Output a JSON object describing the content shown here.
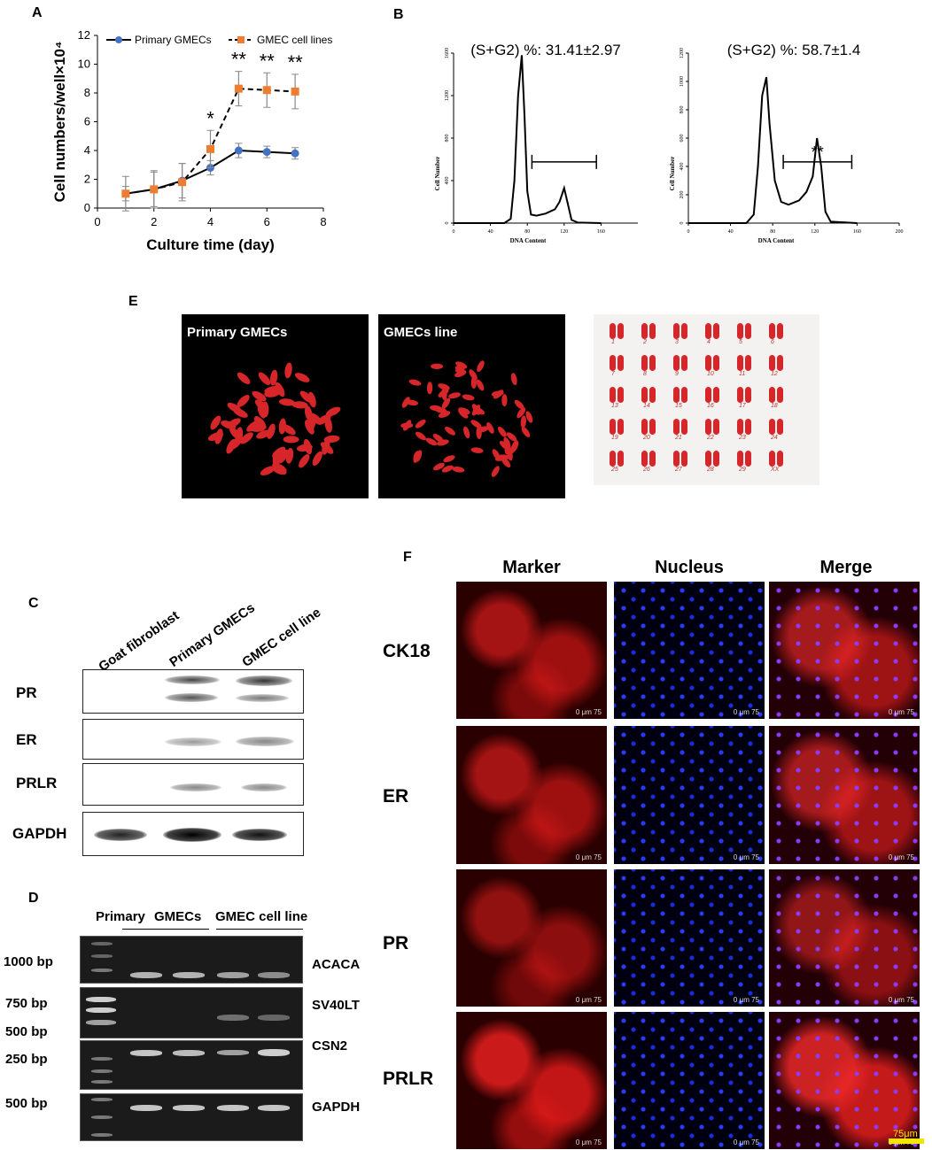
{
  "panels": {
    "A": "A",
    "B": "B",
    "C": "C",
    "D": "D",
    "E": "E",
    "F": "F"
  },
  "chart_data": [
    {
      "type": "line",
      "title": "",
      "xlabel": "Culture time (day)",
      "ylabel": "Cell numbers/well×10⁴",
      "xlim": [
        0,
        8
      ],
      "ylim": [
        0,
        12
      ],
      "xticks": [
        0,
        2,
        4,
        6,
        8
      ],
      "yticks": [
        0,
        2,
        4,
        6,
        8,
        10,
        12
      ],
      "x": [
        1,
        2,
        3,
        4,
        5,
        6,
        7
      ],
      "series": [
        {
          "name": "Primary GMECs",
          "color": "#4472c4",
          "values": [
            1.0,
            1.3,
            1.9,
            2.8,
            4.0,
            3.9,
            3.8
          ],
          "errors": [
            1.2,
            1.2,
            1.2,
            0.5,
            0.5,
            0.4,
            0.4
          ]
        },
        {
          "name": "GMEC cell lines",
          "color": "#ed7d31",
          "values": [
            1.0,
            1.3,
            1.8,
            4.1,
            8.3,
            8.2,
            8.1
          ],
          "errors": [
            0.5,
            1.3,
            1.3,
            1.3,
            1.2,
            1.2,
            1.2
          ]
        }
      ],
      "significance": [
        {
          "x": 4,
          "label": "*"
        },
        {
          "x": 5,
          "label": "**"
        },
        {
          "x": 6,
          "label": "**"
        },
        {
          "x": 7,
          "label": "**"
        }
      ],
      "grid": false,
      "legend": "top"
    },
    {
      "type": "line",
      "title": "(S+G2) %: 31.41±2.97",
      "xlabel": "DNA Content",
      "ylabel": "Cell Number",
      "xlim": [
        0,
        200
      ],
      "ylim": [
        0,
        1600
      ],
      "xticks": [
        "0",
        "40",
        "80",
        "120",
        "160"
      ],
      "yticks": [
        "0",
        "400",
        "800",
        "1200",
        "1600"
      ],
      "x": [
        0,
        55,
        62,
        66,
        70,
        74,
        77,
        80,
        84,
        90,
        100,
        110,
        115,
        120,
        124,
        128,
        135,
        160
      ],
      "values": [
        0,
        0,
        40,
        400,
        1200,
        1580,
        1000,
        300,
        80,
        70,
        90,
        130,
        200,
        330,
        180,
        30,
        5,
        0
      ],
      "bracket": [
        85,
        155
      ],
      "bracket_label": ""
    },
    {
      "type": "line",
      "title": "(S+G2) %: 58.7±1.4",
      "xlabel": "DNA Content",
      "ylabel": "Cell Number",
      "xlim": [
        0,
        200
      ],
      "ylim": [
        0,
        1200
      ],
      "xticks": [
        "0",
        "40",
        "80",
        "120",
        "160",
        "200"
      ],
      "yticks": [
        "0",
        "200",
        "400",
        "600",
        "800",
        "1000",
        "1200"
      ],
      "x": [
        0,
        55,
        62,
        66,
        70,
        74,
        77,
        82,
        88,
        95,
        105,
        112,
        118,
        122,
        126,
        130,
        135,
        160
      ],
      "values": [
        0,
        0,
        60,
        400,
        900,
        1030,
        700,
        300,
        150,
        130,
        160,
        220,
        330,
        600,
        400,
        80,
        10,
        0
      ],
      "bracket": [
        90,
        155
      ],
      "bracket_label": "**"
    }
  ],
  "panelE": {
    "images": [
      "Primary GMECs",
      "GMECs line"
    ],
    "karyotype_labels": [
      "1",
      "2",
      "3",
      "4",
      "5",
      "6",
      "7",
      "8",
      "9",
      "10",
      "11",
      "12",
      "13",
      "14",
      "15",
      "16",
      "17",
      "18",
      "19",
      "20",
      "21",
      "22",
      "23",
      "24",
      "25",
      "26",
      "27",
      "28",
      "29",
      "XX"
    ]
  },
  "panelC": {
    "columns": [
      "Goat fibroblast",
      "Primary GMECs",
      "GMEC cell line"
    ],
    "rows": [
      "PR",
      "ER",
      "PRLR",
      "GAPDH"
    ]
  },
  "panelD": {
    "groups": [
      "Primary GMECs",
      "GMEC cell line"
    ],
    "header_left": "Primary",
    "header_left2": "GMECs",
    "markers": [
      "1000 bp",
      "750 bp",
      "500 bp",
      "250 bp",
      "500 bp"
    ],
    "genes": [
      "ACACA",
      "SV40LT",
      "CSN2",
      "GAPDH"
    ]
  },
  "panelF": {
    "columns": [
      "Marker",
      "Nucleus",
      "Merge"
    ],
    "rows": [
      "CK18",
      "ER",
      "PR",
      "PRLR"
    ],
    "scale_text": "0    μm   75",
    "scalebar_label": "75μm"
  }
}
